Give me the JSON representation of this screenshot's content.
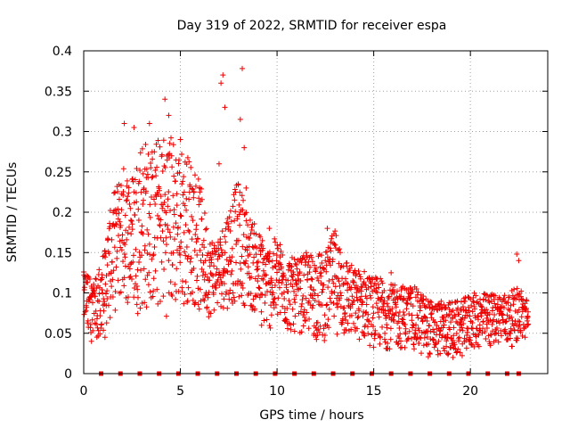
{
  "chart_data": {
    "type": "scatter",
    "title": "Day 319 of 2022, SRMTID for receiver espa",
    "xlabel": "GPS time / hours",
    "ylabel": "SRMTID / TECUs",
    "xlim": [
      0,
      24
    ],
    "ylim": [
      0,
      0.4
    ],
    "xticks": [
      {
        "value": 0,
        "label": "0"
      },
      {
        "value": 5,
        "label": "5"
      },
      {
        "value": 10,
        "label": "10"
      },
      {
        "value": 15,
        "label": "15"
      },
      {
        "value": 20,
        "label": "20"
      }
    ],
    "yticks": [
      {
        "value": 0,
        "label": "0"
      },
      {
        "value": 0.05,
        "label": "0.05"
      },
      {
        "value": 0.1,
        "label": "0.1"
      },
      {
        "value": 0.15,
        "label": "0.15"
      },
      {
        "value": 0.2,
        "label": "0.2"
      },
      {
        "value": 0.25,
        "label": "0.25"
      },
      {
        "value": 0.3,
        "label": "0.3"
      },
      {
        "value": 0.35,
        "label": "0.35"
      },
      {
        "value": 0.4,
        "label": "0.4"
      }
    ],
    "grid": true,
    "series_color": "#ee0000",
    "marker": "plus",
    "envelope_hours": [
      0,
      0.5,
      1,
      1.5,
      2,
      2.5,
      3,
      3.5,
      4,
      4.5,
      5,
      5.5,
      6,
      6.5,
      7,
      7.5,
      8,
      8.5,
      9,
      9.5,
      10,
      10.5,
      11,
      11.5,
      12,
      12.5,
      13,
      13.5,
      14,
      14.5,
      15,
      15.5,
      16,
      16.5,
      17,
      17.5,
      18,
      18.5,
      19,
      19.5,
      20,
      20.5,
      21,
      21.5,
      22,
      22.5,
      23
    ],
    "envelope_low": [
      0.07,
      0.04,
      0.05,
      0.07,
      0.09,
      0.08,
      0.07,
      0.08,
      0.07,
      0.07,
      0.08,
      0.09,
      0.07,
      0.07,
      0.08,
      0.08,
      0.09,
      0.08,
      0.07,
      0.05,
      0.06,
      0.05,
      0.05,
      0.05,
      0.04,
      0.04,
      0.05,
      0.04,
      0.04,
      0.04,
      0.03,
      0.03,
      0.03,
      0.03,
      0.03,
      0.02,
      0.02,
      0.02,
      0.02,
      0.02,
      0.03,
      0.03,
      0.03,
      0.04,
      0.03,
      0.04,
      0.04
    ],
    "envelope_high": [
      0.13,
      0.12,
      0.15,
      0.22,
      0.26,
      0.25,
      0.3,
      0.28,
      0.3,
      0.3,
      0.28,
      0.27,
      0.24,
      0.17,
      0.17,
      0.21,
      0.24,
      0.2,
      0.18,
      0.16,
      0.17,
      0.15,
      0.14,
      0.15,
      0.15,
      0.15,
      0.18,
      0.15,
      0.13,
      0.13,
      0.12,
      0.12,
      0.11,
      0.11,
      0.11,
      0.1,
      0.09,
      0.09,
      0.09,
      0.09,
      0.1,
      0.1,
      0.1,
      0.1,
      0.1,
      0.11,
      0.09
    ],
    "spikes": [
      {
        "x": 2.1,
        "y": 0.31
      },
      {
        "x": 2.6,
        "y": 0.305
      },
      {
        "x": 3.4,
        "y": 0.31
      },
      {
        "x": 4.2,
        "y": 0.34
      },
      {
        "x": 4.4,
        "y": 0.32
      },
      {
        "x": 5.0,
        "y": 0.29
      },
      {
        "x": 7.2,
        "y": 0.37
      },
      {
        "x": 7.1,
        "y": 0.36
      },
      {
        "x": 8.2,
        "y": 0.378
      },
      {
        "x": 7.3,
        "y": 0.33
      },
      {
        "x": 8.1,
        "y": 0.315
      },
      {
        "x": 8.3,
        "y": 0.28
      },
      {
        "x": 6.0,
        "y": 0.23
      },
      {
        "x": 7.0,
        "y": 0.26
      },
      {
        "x": 8.4,
        "y": 0.23
      },
      {
        "x": 12.6,
        "y": 0.18
      },
      {
        "x": 15.9,
        "y": 0.125
      },
      {
        "x": 19.1,
        "y": 0.02
      },
      {
        "x": 22.4,
        "y": 0.148
      },
      {
        "x": 22.5,
        "y": 0.14
      },
      {
        "x": 0.4,
        "y": 0.04
      },
      {
        "x": 1.1,
        "y": 0.045
      },
      {
        "x": 9.2,
        "y": 0.06
      },
      {
        "x": 9.6,
        "y": 0.18
      }
    ],
    "gap_markers_hours": [
      0.9,
      1.9,
      2.9,
      3.9,
      4.9,
      5.9,
      6.9,
      7.9,
      8.9,
      9.9,
      10.9,
      11.9,
      12.9,
      13.9,
      14.9,
      15.9,
      16.9,
      17.9,
      18.9,
      19.9,
      20.9,
      21.9,
      22.5
    ],
    "gap_marker_value": 0
  }
}
